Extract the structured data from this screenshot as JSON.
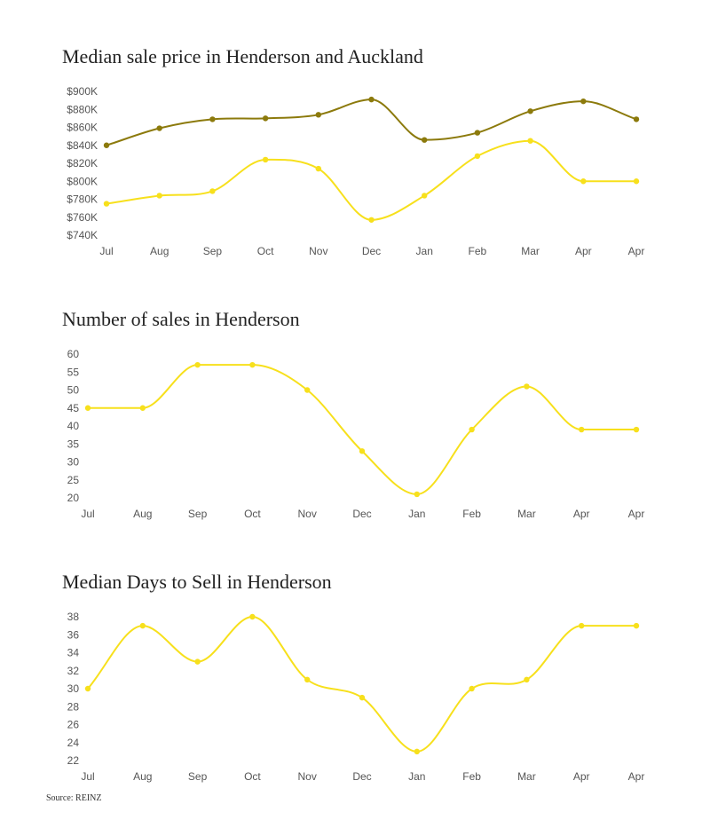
{
  "source": "Source: REINZ",
  "colors": {
    "henderson": "#f7e01c",
    "auckland": "#8c7a0c"
  },
  "chart_data": [
    {
      "type": "line",
      "title": "Median sale price in Henderson and Auckland",
      "categories": [
        "Jul",
        "Aug",
        "Sep",
        "Oct",
        "Nov",
        "Dec",
        "Jan",
        "Feb",
        "Mar",
        "Apr",
        "Apr"
      ],
      "yticks": [
        "$740K",
        "$760K",
        "$780K",
        "$800K",
        "$820K",
        "$840K",
        "$860K",
        "$880K",
        "$900K"
      ],
      "ylim": [
        740000,
        900000
      ],
      "series": [
        {
          "color": "#8c7a0c",
          "values": [
            840000,
            859000,
            869000,
            870000,
            874000,
            891000,
            846000,
            854000,
            878000,
            889000,
            869000
          ]
        },
        {
          "color": "#f7e01c",
          "values": [
            775000,
            784000,
            789000,
            824000,
            814000,
            757000,
            784000,
            828000,
            845000,
            800000,
            800000
          ]
        }
      ]
    },
    {
      "type": "line",
      "title": "Number of sales in Henderson",
      "categories": [
        "Jul",
        "Aug",
        "Sep",
        "Oct",
        "Nov",
        "Dec",
        "Jan",
        "Feb",
        "Mar",
        "Apr",
        "Apr"
      ],
      "yticks": [
        "20",
        "25",
        "30",
        "35",
        "40",
        "45",
        "50",
        "55",
        "60"
      ],
      "ylim": [
        20,
        60
      ],
      "series": [
        {
          "color": "#f7e01c",
          "values": [
            45,
            45,
            57,
            57,
            50,
            33,
            21,
            39,
            51,
            39,
            39
          ]
        }
      ]
    },
    {
      "type": "line",
      "title": "Median Days to Sell in Henderson",
      "categories": [
        "Jul",
        "Aug",
        "Sep",
        "Oct",
        "Nov",
        "Dec",
        "Jan",
        "Feb",
        "Mar",
        "Apr",
        "Apr"
      ],
      "yticks": [
        "22",
        "24",
        "26",
        "28",
        "30",
        "32",
        "34",
        "36",
        "38"
      ],
      "ylim": [
        22,
        38
      ],
      "series": [
        {
          "color": "#f7e01c",
          "values": [
            30,
            37,
            33,
            38,
            31,
            29,
            23,
            30,
            31,
            37,
            37
          ]
        }
      ]
    }
  ]
}
